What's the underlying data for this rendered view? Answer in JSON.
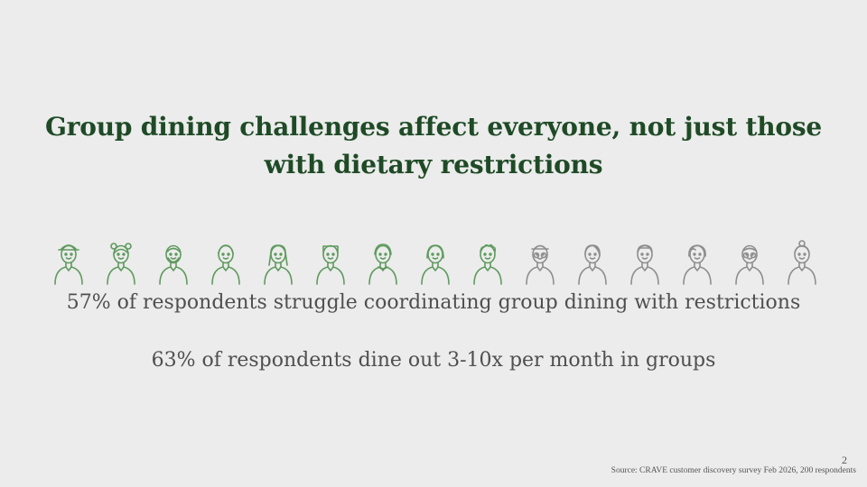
{
  "slide": {
    "title": "Group dining challenges affect everyone, not just those with dietary restrictions",
    "stats": [
      "57% of respondents struggle coordinating group dining with restrictions",
      "63% of respondents dine out 3-10x per month in groups"
    ],
    "page_number": "2",
    "source": "Source: CRAVE customer discovery survey Feb 2026, 200 respondents"
  },
  "people_chart": {
    "total": 15,
    "highlighted": 9,
    "highlight_color": "#5f9a5f",
    "muted_color": "#8e8e8e",
    "icons": [
      "person-hat-icon",
      "person-buns-icon",
      "person-beard-icon",
      "person-short-hair-icon",
      "person-long-hair-icon",
      "person-square-hair-icon",
      "person-hoodie-icon",
      "person-bob-hair-icon",
      "person-curly-hair-icon",
      "person-glasses-hat-icon",
      "person-woman-icon",
      "person-man-icon",
      "person-curly-woman-icon",
      "person-elder-glasses-icon",
      "person-bun-elder-icon"
    ]
  }
}
